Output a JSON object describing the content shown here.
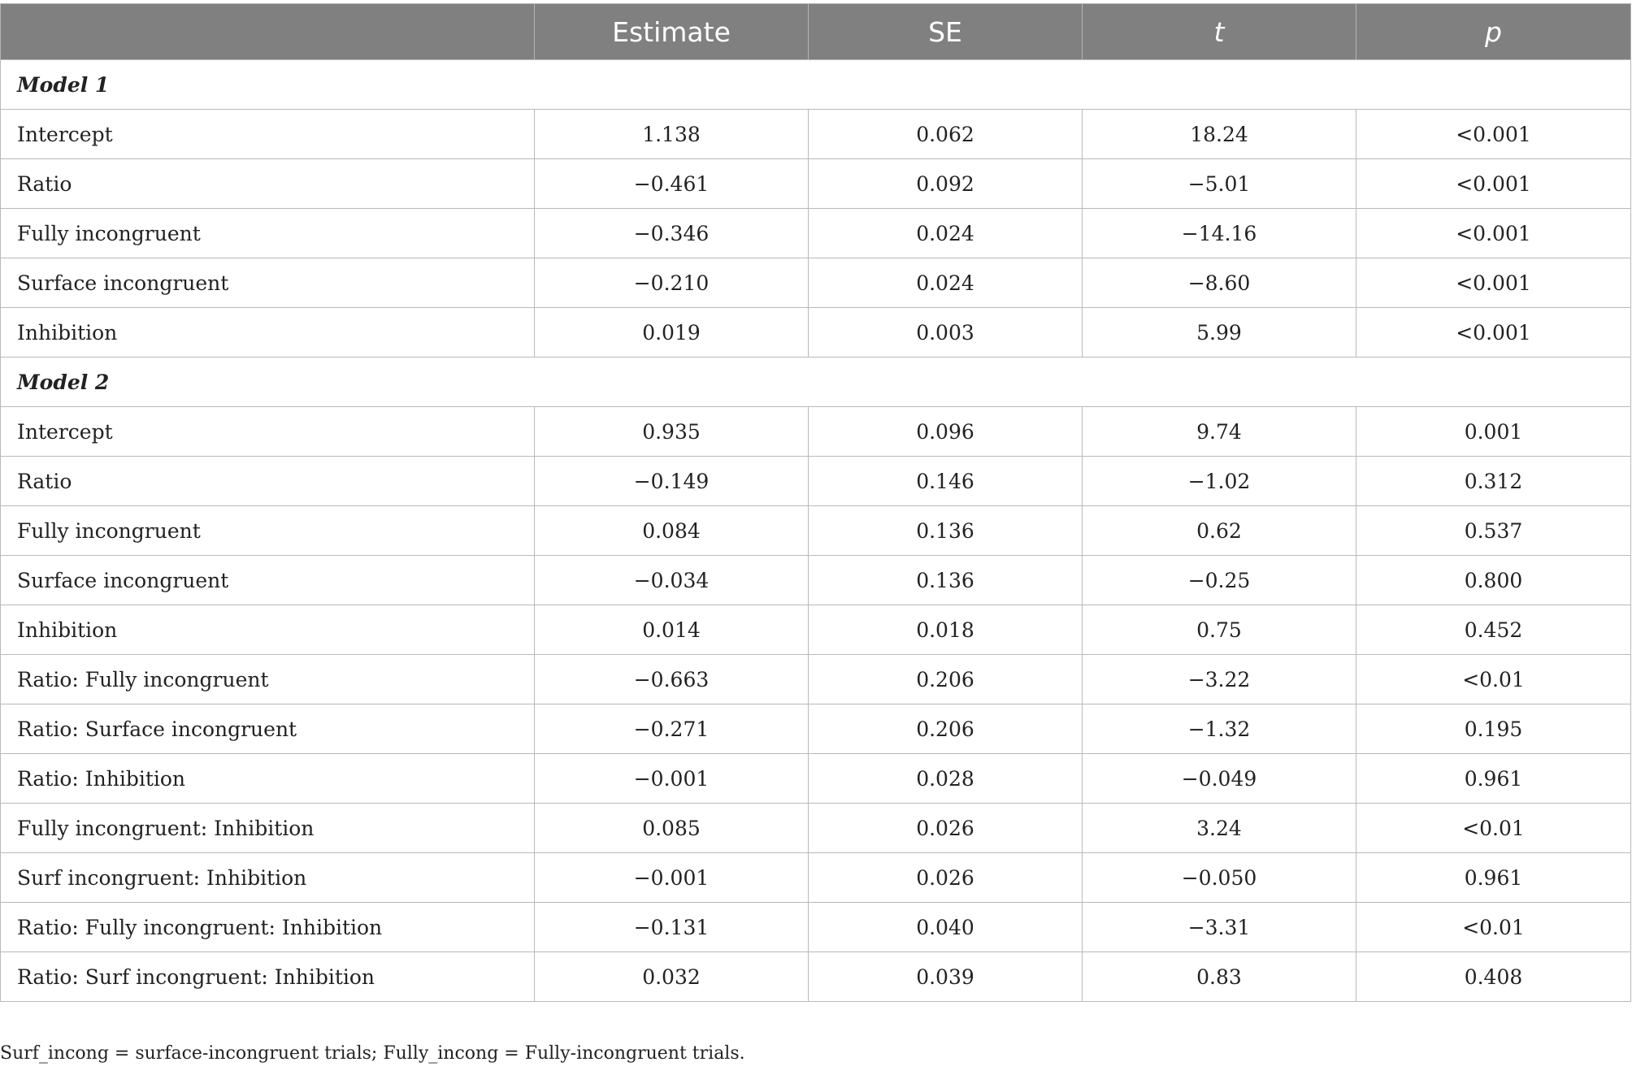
{
  "headers": [
    "",
    "Estimate",
    "SE",
    "t",
    "p"
  ],
  "sections": [
    {
      "title": "Model 1",
      "rows": [
        {
          "term": "Intercept",
          "estimate": "1.138",
          "se": "0.062",
          "t": "18.24",
          "p": "<0.001"
        },
        {
          "term": "Ratio",
          "estimate": "−0.461",
          "se": "0.092",
          "t": "−5.01",
          "p": "<0.001"
        },
        {
          "term": "Fully incongruent",
          "estimate": "−0.346",
          "se": "0.024",
          "t": "−14.16",
          "p": "<0.001"
        },
        {
          "term": "Surface incongruent",
          "estimate": "−0.210",
          "se": "0.024",
          "t": "−8.60",
          "p": "<0.001"
        },
        {
          "term": "Inhibition",
          "estimate": "0.019",
          "se": "0.003",
          "t": "5.99",
          "p": "<0.001"
        }
      ]
    },
    {
      "title": "Model 2",
      "rows": [
        {
          "term": "Intercept",
          "estimate": "0.935",
          "se": "0.096",
          "t": "9.74",
          "p": "0.001"
        },
        {
          "term": "Ratio",
          "estimate": "−0.149",
          "se": "0.146",
          "t": "−1.02",
          "p": "0.312"
        },
        {
          "term": "Fully incongruent",
          "estimate": "0.084",
          "se": "0.136",
          "t": "0.62",
          "p": "0.537"
        },
        {
          "term": "Surface incongruent",
          "estimate": "−0.034",
          "se": "0.136",
          "t": "−0.25",
          "p": "0.800"
        },
        {
          "term": "Inhibition",
          "estimate": "0.014",
          "se": "0.018",
          "t": "0.75",
          "p": "0.452"
        },
        {
          "term": "Ratio: Fully incongruent",
          "estimate": "−0.663",
          "se": "0.206",
          "t": "−3.22",
          "p": "<0.01"
        },
        {
          "term": "Ratio: Surface incongruent",
          "estimate": "−0.271",
          "se": "0.206",
          "t": "−1.32",
          "p": "0.195"
        },
        {
          "term": "Ratio: Inhibition",
          "estimate": "−0.001",
          "se": "0.028",
          "t": "−0.049",
          "p": "0.961"
        },
        {
          "term": "Fully incongruent: Inhibition",
          "estimate": "0.085",
          "se": "0.026",
          "t": "3.24",
          "p": "<0.01"
        },
        {
          "term": "Surf incongruent: Inhibition",
          "estimate": "−0.001",
          "se": "0.026",
          "t": "−0.050",
          "p": "0.961"
        },
        {
          "term": "Ratio: Fully incongruent: Inhibition",
          "estimate": "−0.131",
          "se": "0.040",
          "t": "−3.31",
          "p": "<0.01"
        },
        {
          "term": "Ratio: Surf incongruent: Inhibition",
          "estimate": "0.032",
          "se": "0.039",
          "t": "0.83",
          "p": "0.408"
        }
      ]
    }
  ],
  "footnote": "Surf_incong = surface-incongruent trials; Fully_incong = Fully-incongruent trials."
}
